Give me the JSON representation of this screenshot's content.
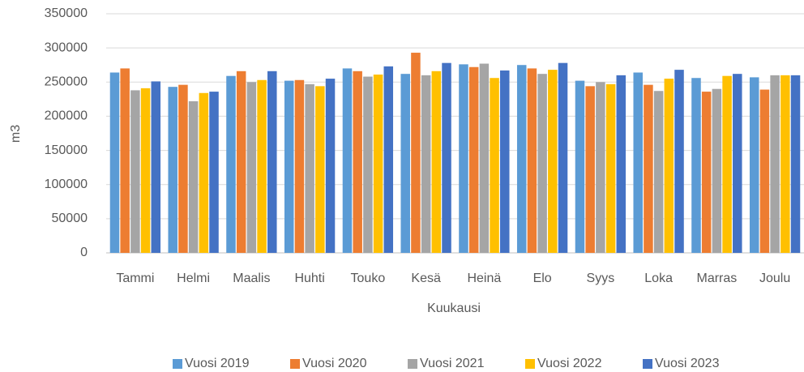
{
  "chart_data": {
    "type": "bar",
    "categories": [
      "Tammi",
      "Helmi",
      "Maalis",
      "Huhti",
      "Touko",
      "Kesä",
      "Heinä",
      "Elo",
      "Syys",
      "Loka",
      "Marras",
      "Joulu"
    ],
    "series": [
      {
        "name": "Vuosi 2019",
        "color": "#5B9BD5",
        "values": [
          264000,
          243000,
          259000,
          252000,
          270000,
          262000,
          276000,
          275000,
          252000,
          264000,
          256000,
          257000
        ]
      },
      {
        "name": "Vuosi 2020",
        "color": "#ED7D31",
        "values": [
          270000,
          246000,
          266000,
          253000,
          266000,
          293000,
          272000,
          270000,
          244000,
          246000,
          236000,
          239000
        ]
      },
      {
        "name": "Vuosi 2021",
        "color": "#A5A5A5",
        "values": [
          238000,
          222000,
          250000,
          247000,
          258000,
          260000,
          277000,
          262000,
          250000,
          237000,
          240000,
          260000
        ]
      },
      {
        "name": "Vuosi 2022",
        "color": "#FFC000",
        "values": [
          241000,
          234000,
          253000,
          244000,
          261000,
          266000,
          256000,
          268000,
          247000,
          255000,
          259000,
          260000
        ]
      },
      {
        "name": "Vuosi 2023",
        "color": "#4472C4",
        "values": [
          251000,
          236000,
          266000,
          255000,
          273000,
          278000,
          267000,
          278000,
          260000,
          268000,
          262000,
          260000
        ]
      }
    ],
    "xlabel": "Kuukausi",
    "ylabel": "m3",
    "ylim": [
      0,
      350000
    ],
    "yticks": [
      0,
      50000,
      100000,
      150000,
      200000,
      250000,
      300000,
      350000
    ],
    "grid": true,
    "legend": "bottom"
  }
}
